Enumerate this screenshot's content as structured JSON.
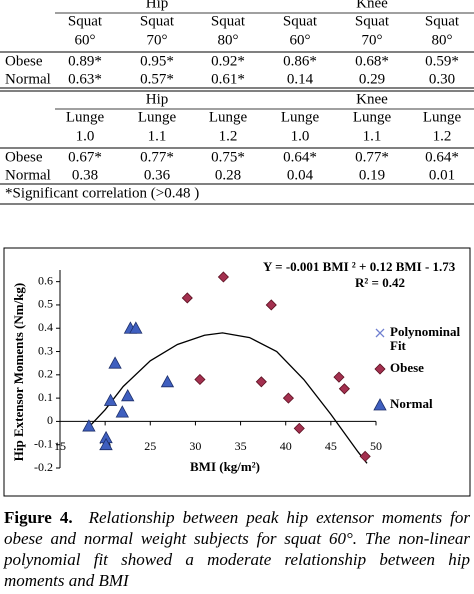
{
  "table": {
    "groups_top": [
      "Hip",
      "Knee"
    ],
    "columns_top": [
      [
        "Squat",
        "60°"
      ],
      [
        "Squat",
        "70°"
      ],
      [
        "Squat",
        "80°"
      ],
      [
        "Squat",
        "60°"
      ],
      [
        "Squat",
        "70°"
      ],
      [
        "Squat",
        "80°"
      ]
    ],
    "rows_top": [
      [
        "Obese",
        "0.89*",
        "0.95*",
        "0.92*",
        "0.86*",
        "0.68*",
        "0.59*"
      ],
      [
        "Normal",
        "0.63*",
        "0.57*",
        "0.61*",
        "0.14",
        "0.29",
        "0.30"
      ]
    ],
    "groups_bottom": [
      "Hip",
      "Knee"
    ],
    "columns_bottom": [
      [
        "Lunge",
        "1.0"
      ],
      [
        "Lunge",
        "1.1"
      ],
      [
        "Lunge",
        "1.2"
      ],
      [
        "Lunge",
        "1.0"
      ],
      [
        "Lunge",
        "1.1"
      ],
      [
        "Lunge",
        "1.2"
      ]
    ],
    "rows_bottom": [
      [
        "Obese",
        "0.67*",
        "0.77*",
        "0.75*",
        "0.64*",
        "0.77*",
        "0.64*"
      ],
      [
        "Normal",
        "0.38",
        "0.36",
        "0.28",
        "0.04",
        "0.19",
        "0.01"
      ]
    ],
    "note": "*Significant correlation (>0.48 )"
  },
  "chart_data": {
    "type": "scatter",
    "x_label": "BMI (kg/m²)",
    "y_label": "Hip Extensor Moments (Nm/kg)",
    "annotations": [
      "Y = -0.001 BMI ² + 0.12 BMI - 1.73",
      "R² = 0.42"
    ],
    "xlim": [
      15,
      50
    ],
    "xticks": [
      15,
      20,
      25,
      30,
      35,
      40,
      45,
      50
    ],
    "ylim": [
      -0.2,
      0.65
    ],
    "yticks": [
      -0.2,
      -0.1,
      0,
      0.1,
      0.2,
      0.3,
      0.4,
      0.5,
      0.6
    ],
    "series": [
      {
        "name": "Polynominal Fit",
        "color": "#000000",
        "marker": "x",
        "line": true,
        "x": [
          18.3,
          20,
          22,
          25,
          28,
          31,
          33,
          36,
          39,
          42,
          45,
          48,
          49
        ],
        "values": [
          -0.02,
          0.05,
          0.15,
          0.26,
          0.33,
          0.37,
          0.38,
          0.36,
          0.3,
          0.18,
          0.03,
          -0.13,
          -0.18
        ]
      },
      {
        "name": "Obese",
        "color": "#a3304f",
        "marker": "diamond",
        "line": false,
        "x": [
          29.1,
          33.1,
          38.4,
          30.5,
          37.3,
          40.3,
          41.5,
          45.9,
          46.5,
          48.8
        ],
        "values": [
          0.53,
          0.62,
          0.5,
          0.18,
          0.17,
          0.1,
          -0.03,
          0.19,
          0.14,
          -0.15
        ]
      },
      {
        "name": "Normal",
        "color": "#3f5fbf",
        "marker": "triangle",
        "line": false,
        "x": [
          18.2,
          20.1,
          20.1,
          20.6,
          21.1,
          21.9,
          22.5,
          22.8,
          23.4,
          26.9
        ],
        "values": [
          -0.02,
          -0.07,
          -0.1,
          0.09,
          0.25,
          0.04,
          0.11,
          0.4,
          0.4,
          0.17
        ]
      }
    ]
  },
  "caption": {
    "label": "Figure 4.",
    "text": "Relationship between peak hip extensor moments for obese and normal weight subjects for squat 60°. The non-linear polynomial fit showed a moderate relationship between hip moments and BMI"
  }
}
